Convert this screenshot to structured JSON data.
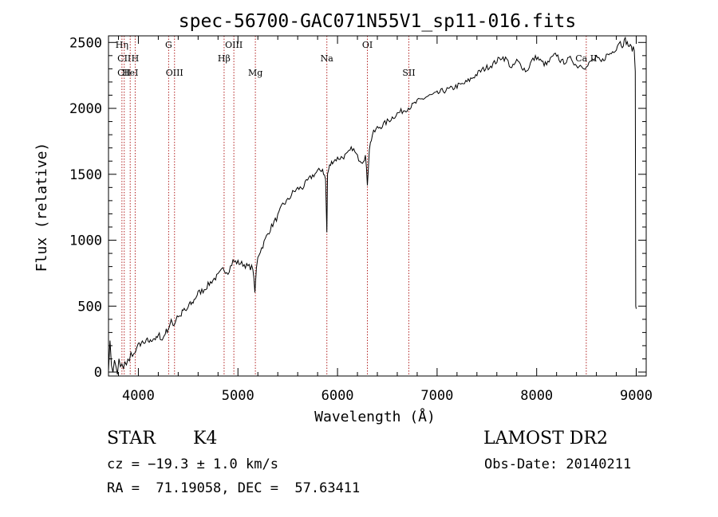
{
  "chart_data": {
    "type": "line",
    "title": "spec-56700-GAC071N55V1_sp11-016.fits",
    "xlabel": "Wavelength (Å)",
    "ylabel": "Flux (relative)",
    "xlim": [
      3700,
      9100
    ],
    "ylim": [
      -30,
      2550
    ],
    "xticks": [
      4000,
      5000,
      6000,
      7000,
      8000,
      9000
    ],
    "xtick_labels": [
      "4000",
      "5000",
      "6000",
      "7000",
      "8000",
      "9000"
    ],
    "yticks": [
      0,
      500,
      1000,
      1500,
      2000,
      2500
    ],
    "ytick_labels": [
      "0",
      "500",
      "1000",
      "1500",
      "2000",
      "2500"
    ],
    "grid": false,
    "line_color": "#000000",
    "marker_color": "#b22222",
    "spectrum": {
      "x": [
        3700,
        3715,
        3730,
        3745,
        3760,
        3775,
        3790,
        3805,
        3820,
        3835,
        3850,
        3865,
        3880,
        3895,
        3910,
        3925,
        3940,
        3955,
        3970,
        3985,
        4000,
        4030,
        4060,
        4090,
        4120,
        4150,
        4180,
        4210,
        4240,
        4270,
        4300,
        4330,
        4360,
        4390,
        4420,
        4450,
        4480,
        4510,
        4540,
        4570,
        4600,
        4650,
        4700,
        4750,
        4800,
        4850,
        4900,
        4950,
        5000,
        5050,
        5100,
        5150,
        5170,
        5185,
        5200,
        5250,
        5300,
        5350,
        5400,
        5450,
        5500,
        5550,
        5600,
        5650,
        5700,
        5750,
        5800,
        5850,
        5880,
        5893,
        5900,
        5920,
        5950,
        6000,
        6050,
        6100,
        6150,
        6200,
        6250,
        6280,
        6300,
        6320,
        6350,
        6400,
        6450,
        6500,
        6550,
        6600,
        6650,
        6700,
        6750,
        6800,
        6850,
        6900,
        6950,
        7000,
        7050,
        7100,
        7150,
        7200,
        7250,
        7300,
        7350,
        7400,
        7450,
        7500,
        7550,
        7600,
        7650,
        7700,
        7750,
        7800,
        7850,
        7900,
        7950,
        8000,
        8050,
        8100,
        8150,
        8200,
        8250,
        8300,
        8350,
        8400,
        8450,
        8500,
        8550,
        8600,
        8650,
        8700,
        8750,
        8800,
        8830,
        8860,
        8890,
        8920,
        8950,
        8980,
        8990,
        8995,
        9000
      ],
      "y": [
        30,
        220,
        60,
        10,
        80,
        40,
        -10,
        90,
        30,
        60,
        20,
        70,
        40,
        110,
        90,
        140,
        110,
        160,
        140,
        190,
        200,
        220,
        210,
        240,
        230,
        260,
        250,
        280,
        240,
        300,
        330,
        380,
        360,
        430,
        420,
        470,
        460,
        510,
        520,
        560,
        600,
        620,
        660,
        700,
        730,
        780,
        760,
        840,
        830,
        820,
        800,
        790,
        600,
        780,
        880,
        960,
        1050,
        1120,
        1180,
        1270,
        1300,
        1360,
        1390,
        1400,
        1450,
        1490,
        1520,
        1540,
        1460,
        1060,
        1500,
        1560,
        1600,
        1620,
        1630,
        1650,
        1700,
        1630,
        1600,
        1640,
        1430,
        1700,
        1800,
        1850,
        1870,
        1900,
        1930,
        1960,
        1980,
        2000,
        2020,
        2050,
        2070,
        2090,
        2100,
        2110,
        2130,
        2140,
        2150,
        2170,
        2180,
        2200,
        2230,
        2260,
        2290,
        2310,
        2330,
        2360,
        2390,
        2370,
        2300,
        2360,
        2320,
        2280,
        2360,
        2390,
        2350,
        2330,
        2380,
        2410,
        2350,
        2360,
        2380,
        2320,
        2330,
        2310,
        2360,
        2380,
        2350,
        2400,
        2420,
        2460,
        2510,
        2480,
        2520,
        2480,
        2460,
        2440,
        2280,
        500,
        480
      ]
    },
    "line_markers": [
      {
        "label": "Hη",
        "x": 3835,
        "row": 0
      },
      {
        "label": "CII",
        "x": 3858,
        "row": 1
      },
      {
        "label": "CII",
        "x": 3858,
        "row": 2
      },
      {
        "label": "H",
        "x": 3968,
        "row": 1
      },
      {
        "label": "HeI",
        "x": 3918,
        "row": 2
      },
      {
        "label": "G",
        "x": 4304,
        "row": 0
      },
      {
        "label": "OIII",
        "x": 4363,
        "row": 2
      },
      {
        "label": "OIII",
        "x": 4959,
        "row": 0
      },
      {
        "label": "Hβ",
        "x": 4861,
        "row": 1
      },
      {
        "label": "Mg",
        "x": 5175,
        "row": 2
      },
      {
        "label": "Na",
        "x": 5893,
        "row": 1
      },
      {
        "label": "OI",
        "x": 6300,
        "row": 0
      },
      {
        "label": "SII",
        "x": 6716,
        "row": 2
      },
      {
        "label": "Ca II",
        "x": 8498,
        "row": 1
      }
    ]
  },
  "info": {
    "object_class": "STAR",
    "subclass": "K4",
    "survey": "LAMOST DR2",
    "cz": "cz = −19.3 ± 1.0 km/s",
    "obs_date": "Obs-Date: 20140211",
    "coords": "RA =  71.19058, DEC =  57.63411"
  }
}
